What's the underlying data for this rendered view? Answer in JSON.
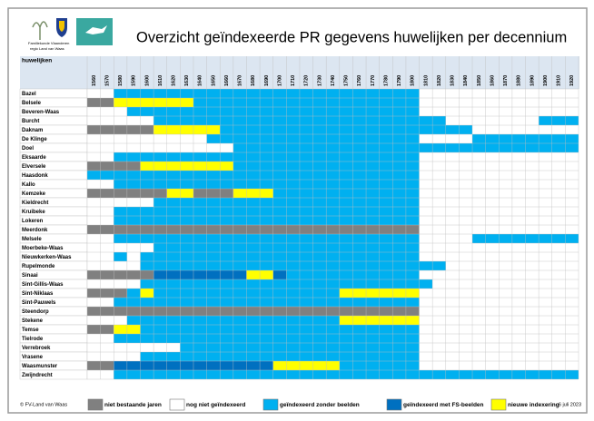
{
  "header": {
    "org": "Familiekunde Vlaanderen",
    "region": "regio Land van Waas",
    "title": "Overzicht geïndexeerde PR gegevens huwelijken per decennium"
  },
  "table": {
    "heading": "huwelijken",
    "decades": [
      1560,
      1570,
      1580,
      1590,
      1600,
      1610,
      1620,
      1630,
      1640,
      1650,
      1660,
      1670,
      1680,
      1690,
      1700,
      1710,
      1720,
      1730,
      1740,
      1750,
      1760,
      1770,
      1780,
      1790,
      1800,
      1810,
      1820,
      1830,
      1840,
      1850,
      1860,
      1870,
      1880,
      1890,
      1900,
      1910,
      1920
    ],
    "rows": [
      {
        "name": "Bazel",
        "spans": [
          [
            1,
            2
          ],
          [
            2,
            23
          ],
          [
            1,
            12
          ]
        ]
      },
      {
        "name": "Belsele",
        "spans": [
          [
            0,
            2
          ],
          [
            4,
            6
          ],
          [
            2,
            17
          ],
          [
            1,
            12
          ]
        ]
      },
      {
        "name": "Beveren-Waas",
        "spans": [
          [
            1,
            3
          ],
          [
            2,
            22
          ],
          [
            1,
            12
          ]
        ]
      },
      {
        "name": "Burcht",
        "spans": [
          [
            1,
            5
          ],
          [
            2,
            22
          ],
          [
            1,
            7
          ],
          [
            2,
            3
          ]
        ]
      },
      {
        "name": "Daknam",
        "spans": [
          [
            0,
            5
          ],
          [
            4,
            5
          ],
          [
            2,
            19
          ],
          [
            1,
            8
          ]
        ]
      },
      {
        "name": "De Klinge",
        "spans": [
          [
            1,
            9
          ],
          [
            2,
            16
          ],
          [
            1,
            4
          ],
          [
            2,
            8
          ]
        ]
      },
      {
        "name": "Doel",
        "spans": [
          [
            1,
            11
          ],
          [
            2,
            26
          ]
        ]
      },
      {
        "name": "Eksaarde",
        "spans": [
          [
            1,
            2
          ],
          [
            2,
            23
          ],
          [
            1,
            12
          ]
        ]
      },
      {
        "name": "Elversele",
        "spans": [
          [
            0,
            4
          ],
          [
            4,
            7
          ],
          [
            2,
            14
          ],
          [
            1,
            12
          ]
        ]
      },
      {
        "name": "Haasdonk",
        "spans": [
          [
            2,
            25
          ],
          [
            1,
            12
          ]
        ]
      },
      {
        "name": "Kallo",
        "spans": [
          [
            1,
            2
          ],
          [
            2,
            23
          ],
          [
            1,
            12
          ]
        ]
      },
      {
        "name": "Kemzeke",
        "spans": [
          [
            0,
            6
          ],
          [
            4,
            2
          ],
          [
            0,
            3
          ],
          [
            4,
            3
          ],
          [
            2,
            11
          ],
          [
            1,
            12
          ]
        ]
      },
      {
        "name": "Kieldrecht",
        "spans": [
          [
            1,
            5
          ],
          [
            2,
            20
          ],
          [
            1,
            12
          ]
        ]
      },
      {
        "name": "Kruibeke",
        "spans": [
          [
            1,
            2
          ],
          [
            2,
            23
          ],
          [
            1,
            12
          ]
        ]
      },
      {
        "name": "Lokeren",
        "spans": [
          [
            1,
            2
          ],
          [
            2,
            23
          ],
          [
            1,
            12
          ]
        ]
      },
      {
        "name": "Meerdonk",
        "spans": [
          [
            0,
            25
          ],
          [
            1,
            12
          ]
        ]
      },
      {
        "name": "Melsele",
        "spans": [
          [
            1,
            2
          ],
          [
            2,
            23
          ],
          [
            1,
            4
          ],
          [
            2,
            8
          ]
        ]
      },
      {
        "name": "Moerbeke-Waas",
        "spans": [
          [
            1,
            5
          ],
          [
            2,
            20
          ],
          [
            1,
            12
          ]
        ]
      },
      {
        "name": "Nieuwkerken-Waas",
        "spans": [
          [
            1,
            2
          ],
          [
            2,
            1
          ],
          [
            1,
            1
          ],
          [
            2,
            21
          ],
          [
            1,
            12
          ]
        ]
      },
      {
        "name": "Rupelmonde",
        "spans": [
          [
            1,
            4
          ],
          [
            2,
            23
          ],
          [
            1,
            10
          ]
        ]
      },
      {
        "name": "Sinaai",
        "spans": [
          [
            0,
            5
          ],
          [
            3,
            7
          ],
          [
            4,
            2
          ],
          [
            3,
            1
          ],
          [
            2,
            10
          ],
          [
            1,
            12
          ]
        ]
      },
      {
        "name": "Sint-Gillis-Waas",
        "spans": [
          [
            1,
            4
          ],
          [
            2,
            22
          ],
          [
            1,
            11
          ]
        ]
      },
      {
        "name": "Sint-Niklaas",
        "spans": [
          [
            0,
            3
          ],
          [
            2,
            1
          ],
          [
            4,
            1
          ],
          [
            2,
            14
          ],
          [
            4,
            6
          ],
          [
            1,
            12
          ]
        ]
      },
      {
        "name": "Sint-Pauwels",
        "spans": [
          [
            1,
            2
          ],
          [
            2,
            23
          ],
          [
            1,
            12
          ]
        ]
      },
      {
        "name": "Steendorp",
        "spans": [
          [
            0,
            25
          ],
          [
            1,
            12
          ]
        ]
      },
      {
        "name": "Stekene",
        "spans": [
          [
            1,
            3
          ],
          [
            2,
            16
          ],
          [
            4,
            6
          ],
          [
            1,
            12
          ]
        ]
      },
      {
        "name": "Temse",
        "spans": [
          [
            0,
            2
          ],
          [
            4,
            2
          ],
          [
            2,
            21
          ],
          [
            1,
            12
          ]
        ]
      },
      {
        "name": "Tielrode",
        "spans": [
          [
            1,
            2
          ],
          [
            2,
            23
          ],
          [
            1,
            12
          ]
        ]
      },
      {
        "name": "Verrebroek",
        "spans": [
          [
            1,
            7
          ],
          [
            2,
            18
          ],
          [
            1,
            12
          ]
        ]
      },
      {
        "name": "Vrasene",
        "spans": [
          [
            1,
            4
          ],
          [
            2,
            21
          ],
          [
            1,
            12
          ]
        ]
      },
      {
        "name": "Waasmunster",
        "spans": [
          [
            0,
            2
          ],
          [
            3,
            12
          ],
          [
            4,
            5
          ],
          [
            2,
            6
          ],
          [
            1,
            12
          ]
        ]
      },
      {
        "name": "Zwijndrecht",
        "spans": [
          [
            1,
            2
          ],
          [
            2,
            35
          ]
        ]
      }
    ]
  },
  "legend": [
    {
      "label": "niet bestaande jaren",
      "color": "#808080"
    },
    {
      "label": "nog niet geïndexeerd",
      "color": "#ffffff"
    },
    {
      "label": "geïndexeerd zonder beelden",
      "color": "#00b0f0"
    },
    {
      "label": "geïndexeerd met FS-beelden",
      "color": "#0070c0"
    },
    {
      "label": "nieuwe indexering",
      "color": "#ffff00"
    }
  ],
  "footer": {
    "credit": "© FV-Land van Waas",
    "date": "6 juli 2023"
  }
}
